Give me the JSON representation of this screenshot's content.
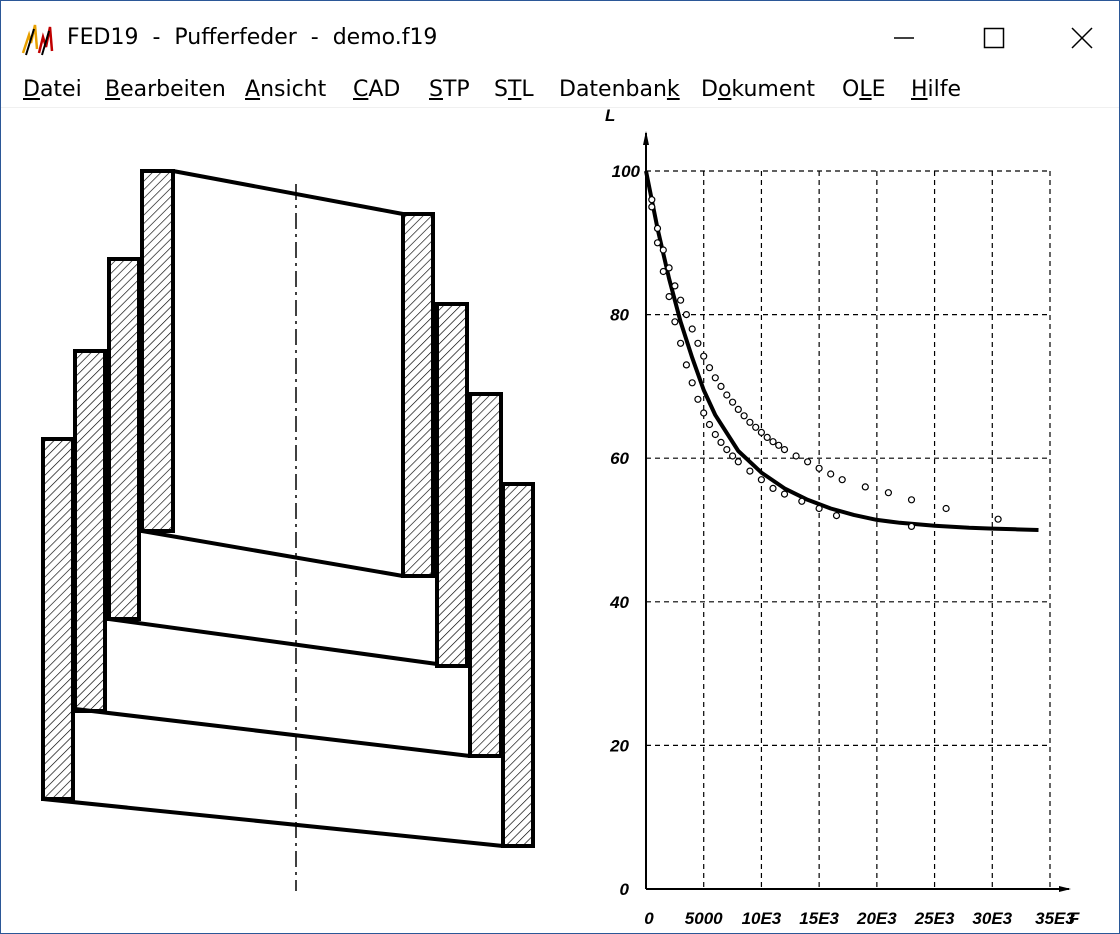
{
  "window": {
    "title": "FED19  -  Pufferfeder  -  demo.f19",
    "icon": "fed19-app-icon",
    "controls": [
      "minimize-icon",
      "maximize-icon",
      "close-icon"
    ]
  },
  "menu": [
    {
      "label": "Datei",
      "mnemonic": "D"
    },
    {
      "label": "Bearbeiten",
      "mnemonic": "B"
    },
    {
      "label": "Ansicht",
      "mnemonic": "A"
    },
    {
      "label": "CAD",
      "mnemonic": "C"
    },
    {
      "label": "STP",
      "mnemonic": "S"
    },
    {
      "label": "STL",
      "mnemonic": "T"
    },
    {
      "label": "Datenbank",
      "mnemonic": "k"
    },
    {
      "label": "Dokument",
      "mnemonic": "o"
    },
    {
      "label": "OLE",
      "mnemonic": "L"
    },
    {
      "label": "Hilfe",
      "mnemonic": "H"
    }
  ],
  "drawing": {
    "description_icon": "telescoping-spring-section"
  },
  "chart_data": {
    "type": "line",
    "ylabel": "L",
    "xlabel": "F",
    "xlim": [
      0,
      35000
    ],
    "ylim": [
      0,
      100
    ],
    "x_tick_labels": [
      "0",
      "5000",
      "10E3",
      "15E3",
      "20E3",
      "25E3",
      "30E3",
      "35E3"
    ],
    "y_tick_labels": [
      "0",
      "20",
      "40",
      "60",
      "80",
      "100"
    ],
    "grid": true,
    "series": [
      {
        "style": "solid-thick",
        "x": [
          0,
          1000,
          2000,
          3000,
          4000,
          5000,
          6000,
          8000,
          10000,
          12000,
          14000,
          16000,
          18000,
          20000,
          22000,
          25000,
          28000,
          30000,
          32000,
          34000
        ],
        "y": [
          100,
          92,
          85,
          79,
          74,
          69.5,
          66,
          61,
          58,
          55.8,
          54.2,
          53,
          52.1,
          51.4,
          51,
          50.6,
          50.3,
          50.2,
          50.1,
          50
        ]
      },
      {
        "style": "circles-upper",
        "x": [
          500,
          1000,
          1500,
          2000,
          2500,
          3000,
          3500,
          4000,
          4500,
          5000,
          5500,
          6000,
          6500,
          7000,
          7500,
          8000,
          8500,
          9000,
          9500,
          10000,
          10500,
          11000,
          11500,
          12000,
          13000,
          14000,
          15000,
          16000,
          17000,
          19000,
          21000,
          23000,
          26000,
          30500
        ],
        "y": [
          96,
          92,
          89,
          86.5,
          84,
          82,
          80,
          78,
          76,
          74.2,
          72.6,
          71.2,
          70,
          68.8,
          67.8,
          66.8,
          65.9,
          65,
          64.3,
          63.6,
          62.9,
          62.3,
          61.8,
          61.2,
          60.3,
          59.5,
          58.6,
          57.8,
          57,
          56,
          55.2,
          54.2,
          53,
          51.5
        ]
      },
      {
        "style": "circles-lower",
        "x": [
          500,
          1000,
          1500,
          2000,
          2500,
          3000,
          3500,
          4000,
          4500,
          5000,
          5500,
          6000,
          6500,
          7000,
          7500,
          8000,
          9000,
          10000,
          11000,
          12000,
          13500,
          15000,
          16500,
          23000
        ],
        "y": [
          95,
          90,
          86,
          82.5,
          79,
          76,
          73,
          70.5,
          68.2,
          66.3,
          64.7,
          63.3,
          62.2,
          61.2,
          60.3,
          59.5,
          58.2,
          57,
          55.8,
          55,
          54,
          53,
          52,
          50.5
        ]
      }
    ]
  }
}
